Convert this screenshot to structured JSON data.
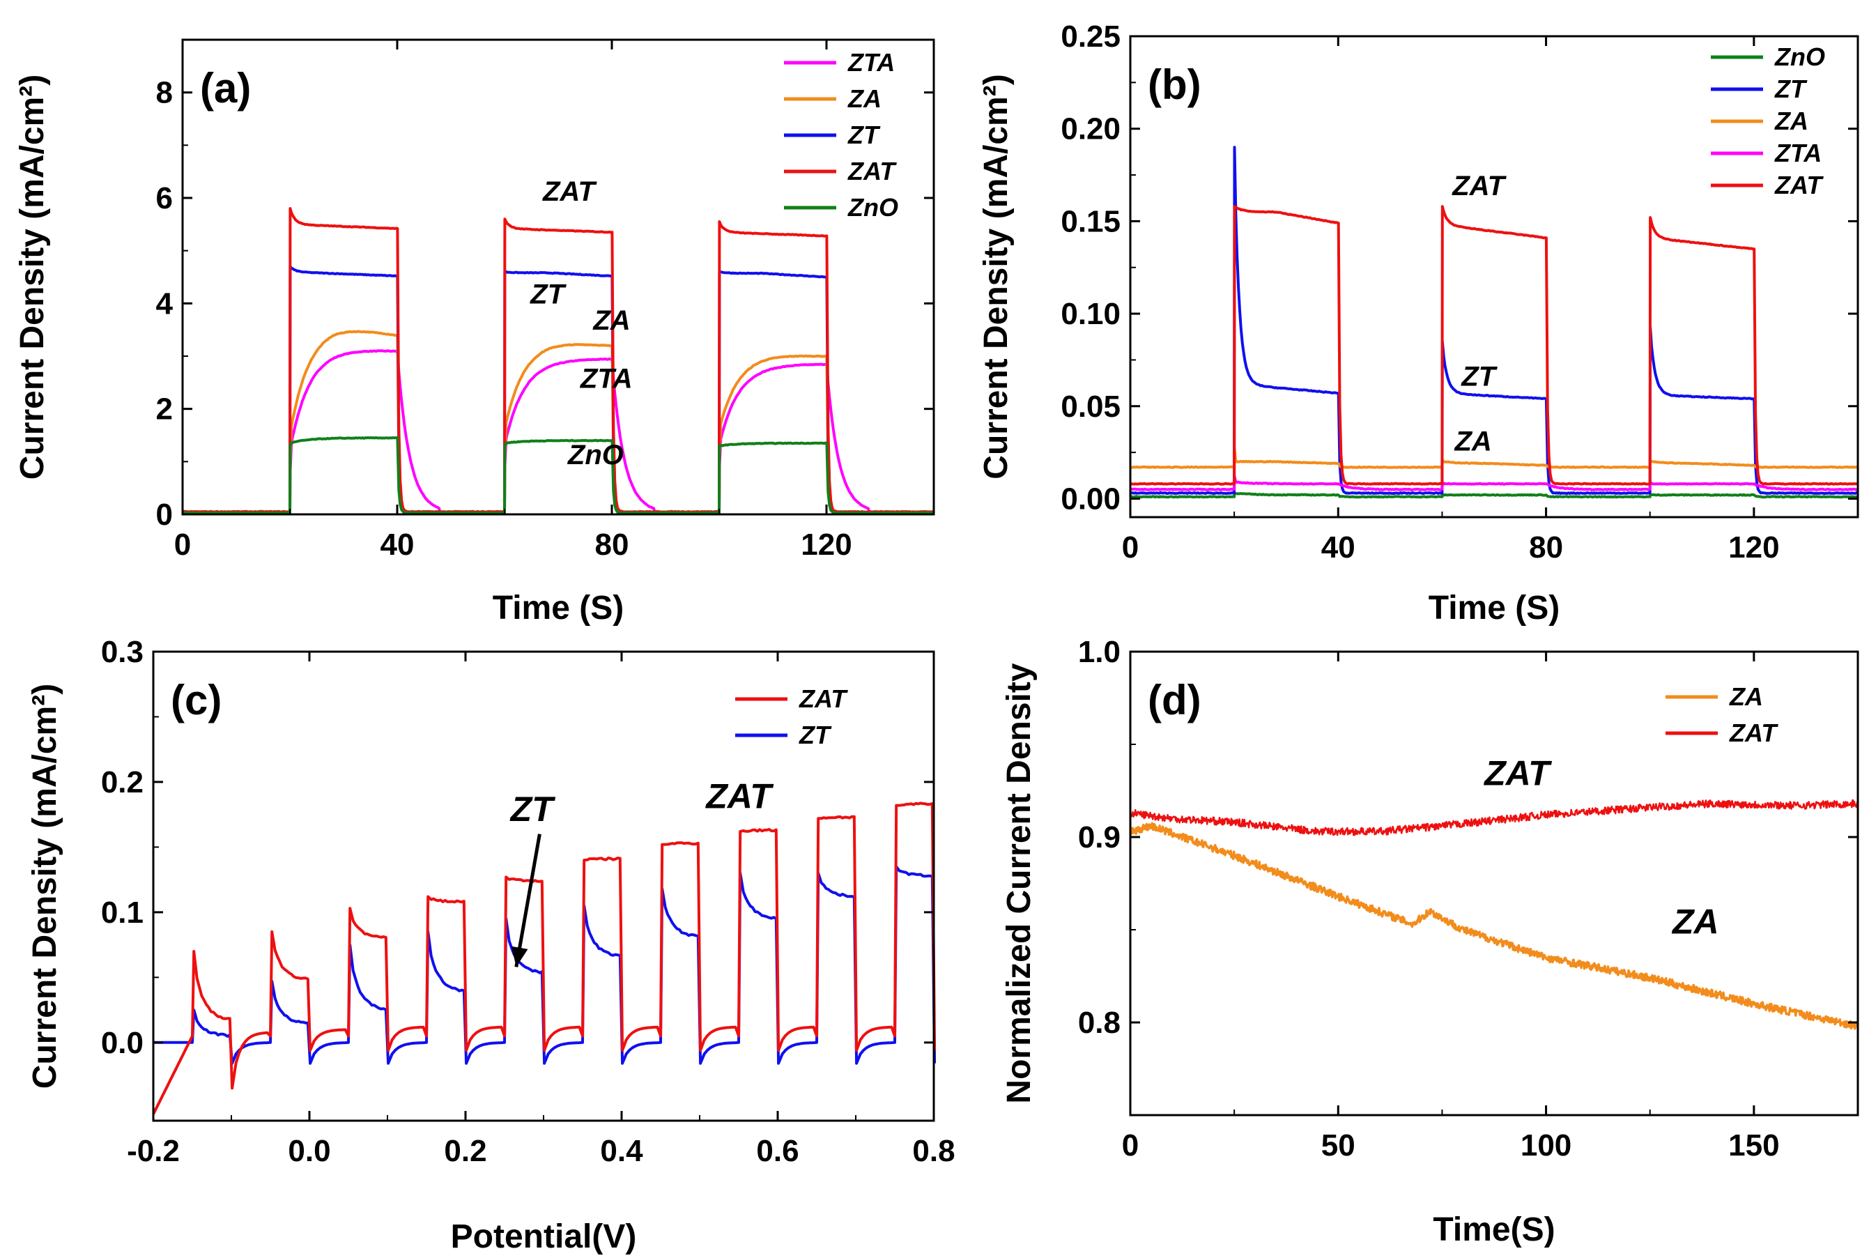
{
  "figure": "photocurrent panels",
  "colors": {
    "ZTA": "#ff00ff",
    "ZA": "#f28c1c",
    "ZT": "#1010ee",
    "ZAT": "#ee1010",
    "ZnO": "#10801a"
  },
  "chart_data": [
    {
      "id": "a",
      "type": "line",
      "panel_label": "(a)",
      "xlabel": "Time (S)",
      "ylabel": "Current Density (mA/cm²)",
      "xlim": [
        0,
        140
      ],
      "ylim": [
        0,
        9
      ],
      "xticks": [
        0,
        40,
        80,
        120
      ],
      "yticks": [
        0,
        2,
        4,
        6,
        8
      ],
      "xtick_labels": [
        "0",
        "40",
        "80",
        "120"
      ],
      "ytick_labels": [
        "0",
        "2",
        "4",
        "6",
        "8"
      ],
      "legend": [
        "ZTA",
        "ZA",
        "ZT",
        "ZAT",
        "ZnO"
      ],
      "legend_position": "top-right",
      "on_off_periods_s": [
        [
          20,
          40
        ],
        [
          60,
          80
        ],
        [
          100,
          120
        ]
      ],
      "series": [
        {
          "name": "ZTA",
          "dark": 0.03,
          "cycles": [
            {
              "spike": 0.8,
              "start": 1.2,
              "plateau": 3.15,
              "end": 3.1
            },
            {
              "spike": 0.9,
              "start": 1.3,
              "plateau": 2.95,
              "end": 2.95
            },
            {
              "spike": 0.9,
              "start": 1.3,
              "plateau": 2.85,
              "end": 2.85
            }
          ]
        },
        {
          "name": "ZA",
          "dark": 0.03,
          "cycles": [
            {
              "spike": 1.0,
              "start": 1.5,
              "plateau": 3.6,
              "end": 3.4
            },
            {
              "spike": 1.1,
              "start": 1.6,
              "plateau": 3.3,
              "end": 3.2
            },
            {
              "spike": 1.1,
              "start": 1.6,
              "plateau": 3.05,
              "end": 3.0
            }
          ]
        },
        {
          "name": "ZT",
          "dark": 0.04,
          "cycles": [
            {
              "spike": 4.7,
              "start": 4.65,
              "plateau": 4.6,
              "end": 4.52
            },
            {
              "spike": 4.6,
              "start": 4.6,
              "plateau": 4.58,
              "end": 4.52
            },
            {
              "spike": 4.6,
              "start": 4.6,
              "plateau": 4.57,
              "end": 4.5
            }
          ]
        },
        {
          "name": "ZAT",
          "dark": 0.05,
          "cycles": [
            {
              "spike": 5.8,
              "start": 5.6,
              "plateau": 5.5,
              "end": 5.42
            },
            {
              "spike": 5.6,
              "start": 5.45,
              "plateau": 5.42,
              "end": 5.35
            },
            {
              "spike": 5.55,
              "start": 5.4,
              "plateau": 5.35,
              "end": 5.28
            }
          ]
        },
        {
          "name": "ZnO",
          "dark": 0.03,
          "cycles": [
            {
              "spike": 1.3,
              "start": 1.35,
              "plateau": 1.45,
              "end": 1.45
            },
            {
              "spike": 1.3,
              "start": 1.35,
              "plateau": 1.4,
              "end": 1.4
            },
            {
              "spike": 1.3,
              "start": 1.3,
              "plateau": 1.35,
              "end": 1.35
            }
          ]
        }
      ],
      "annotations": [
        {
          "text": "ZAT",
          "x": 72,
          "y": 5.95
        },
        {
          "text": "ZT",
          "x": 68,
          "y": 4.0
        },
        {
          "text": "ZA",
          "x": 80,
          "y": 3.5
        },
        {
          "text": "ZTA",
          "x": 79,
          "y": 2.4
        },
        {
          "text": "ZnO",
          "x": 77,
          "y": 0.95
        }
      ]
    },
    {
      "id": "b",
      "type": "line",
      "panel_label": "(b)",
      "xlabel": "Time (S)",
      "ylabel": "Current Density (mA/cm²)",
      "xlim": [
        0,
        140
      ],
      "ylim": [
        -0.01,
        0.25
      ],
      "xticks": [
        0,
        40,
        80,
        120
      ],
      "yticks": [
        0.0,
        0.05,
        0.1,
        0.15,
        0.2,
        0.25
      ],
      "xtick_labels": [
        "0",
        "40",
        "80",
        "120"
      ],
      "ytick_labels": [
        "0.00",
        "0.05",
        "0.10",
        "0.15",
        "0.20",
        "0.25"
      ],
      "legend": [
        "ZnO",
        "ZT",
        "ZA",
        "ZTA",
        "ZAT"
      ],
      "legend_position": "top-right",
      "on_off_periods_s": [
        [
          20,
          40
        ],
        [
          60,
          80
        ],
        [
          100,
          120
        ]
      ],
      "series": [
        {
          "name": "ZnO",
          "dark": 0.001,
          "cycles": [
            {
              "spike": 0.003,
              "start": 0.003,
              "plateau": 0.002,
              "end": 0.002
            },
            {
              "spike": 0.002,
              "start": 0.002,
              "plateau": 0.002,
              "end": 0.002
            },
            {
              "spike": 0.002,
              "start": 0.002,
              "plateau": 0.002,
              "end": 0.002
            }
          ]
        },
        {
          "name": "ZT",
          "dark": 0.003,
          "cycles": [
            {
              "spike": 0.19,
              "start": 0.08,
              "plateau": 0.062,
              "end": 0.057
            },
            {
              "spike": 0.085,
              "start": 0.06,
              "plateau": 0.057,
              "end": 0.054
            },
            {
              "spike": 0.093,
              "start": 0.06,
              "plateau": 0.056,
              "end": 0.054
            }
          ]
        },
        {
          "name": "ZA",
          "dark": 0.017,
          "cycles": [
            {
              "spike": 0.027,
              "start": 0.02,
              "plateau": 0.02,
              "end": 0.019
            },
            {
              "spike": 0.021,
              "start": 0.02,
              "plateau": 0.019,
              "end": 0.018
            },
            {
              "spike": 0.02,
              "start": 0.02,
              "plateau": 0.019,
              "end": 0.018
            }
          ]
        },
        {
          "name": "ZTA",
          "dark": 0.005,
          "cycles": [
            {
              "spike": 0.012,
              "start": 0.009,
              "plateau": 0.008,
              "end": 0.008
            },
            {
              "spike": 0.009,
              "start": 0.008,
              "plateau": 0.008,
              "end": 0.008
            },
            {
              "spike": 0.009,
              "start": 0.008,
              "plateau": 0.008,
              "end": 0.008
            }
          ]
        },
        {
          "name": "ZAT",
          "dark": 0.008,
          "cycles": [
            {
              "spike": 0.158,
              "start": 0.158,
              "plateau": 0.155,
              "end": 0.149
            },
            {
              "spike": 0.158,
              "start": 0.152,
              "plateau": 0.148,
              "end": 0.141
            },
            {
              "spike": 0.152,
              "start": 0.145,
              "plateau": 0.141,
              "end": 0.135
            }
          ]
        }
      ],
      "annotations": [
        {
          "text": "ZAT",
          "x": 67,
          "y": 0.164
        },
        {
          "text": "ZT",
          "x": 67,
          "y": 0.061
        },
        {
          "text": "ZA",
          "x": 66,
          "y": 0.026
        }
      ]
    },
    {
      "id": "c",
      "type": "line",
      "panel_label": "(c)",
      "xlabel": "Potential(V)",
      "ylabel": "Current Density (mA/cm²)",
      "xlim": [
        -0.2,
        0.8
      ],
      "ylim": [
        -0.06,
        0.3
      ],
      "xticks": [
        -0.2,
        0.0,
        0.2,
        0.4,
        0.6,
        0.8
      ],
      "yticks": [
        0.0,
        0.1,
        0.2,
        0.3
      ],
      "xtick_labels": [
        "-0.2",
        "0.0",
        "0.2",
        "0.4",
        "0.6",
        "0.8"
      ],
      "ytick_labels": [
        "0.0",
        "0.1",
        "0.2",
        "0.3"
      ],
      "legend": [
        "ZAT",
        "ZT"
      ],
      "legend_position": "top-right",
      "chopped_light_period_V": 0.1,
      "series": [
        {
          "name": "ZAT",
          "on_potentials": [
            -0.15,
            -0.05,
            0.05,
            0.15,
            0.25,
            0.35,
            0.45,
            0.55,
            0.65,
            0.75
          ],
          "spike": [
            0.07,
            0.085,
            0.103,
            0.112,
            0.127,
            0.14,
            0.152,
            0.162,
            0.172,
            0.182
          ],
          "plateau": [
            0.017,
            0.048,
            0.08,
            0.108,
            0.124,
            0.141,
            0.153,
            0.163,
            0.173,
            0.183
          ]
        },
        {
          "name": "ZT",
          "on_potentials": [
            -0.15,
            -0.05,
            0.05,
            0.15,
            0.25,
            0.35,
            0.45,
            0.55,
            0.65,
            0.75
          ],
          "spike": [
            0.025,
            0.047,
            0.075,
            0.085,
            0.095,
            0.105,
            0.118,
            0.13,
            0.13,
            0.135
          ],
          "plateau": [
            0.005,
            0.014,
            0.025,
            0.039,
            0.053,
            0.066,
            0.081,
            0.095,
            0.112,
            0.128
          ]
        }
      ],
      "annotations": [
        {
          "text": "ZT",
          "x": 0.285,
          "y": 0.17
        },
        {
          "text": "ZAT",
          "x": 0.55,
          "y": 0.18
        }
      ]
    },
    {
      "id": "d",
      "type": "line",
      "panel_label": "(d)",
      "xlabel": "Time(S)",
      "ylabel": "Normalized Current Density",
      "xlim": [
        0,
        175
      ],
      "ylim": [
        0.75,
        1.0
      ],
      "xticks": [
        0,
        50,
        100,
        150
      ],
      "yticks": [
        0.8,
        0.9,
        1.0
      ],
      "xtick_labels": [
        "0",
        "50",
        "100",
        "150"
      ],
      "ytick_labels": [
        "0.8",
        "0.9",
        "1.0"
      ],
      "legend": [
        "ZA",
        "ZAT"
      ],
      "legend_position": "top-right",
      "series": [
        {
          "name": "ZA",
          "x": [
            0,
            5,
            25,
            50,
            68,
            72,
            80,
            100,
            125,
            150,
            175
          ],
          "y": [
            0.903,
            0.906,
            0.89,
            0.868,
            0.853,
            0.86,
            0.85,
            0.835,
            0.824,
            0.81,
            0.798
          ]
        },
        {
          "name": "ZAT",
          "x": [
            0,
            10,
            25,
            45,
            60,
            75,
            100,
            125,
            140,
            160,
            175
          ],
          "y": [
            0.913,
            0.91,
            0.908,
            0.903,
            0.903,
            0.906,
            0.912,
            0.916,
            0.918,
            0.917,
            0.918
          ]
        }
      ],
      "annotations": [
        {
          "text": "ZAT",
          "x": 93,
          "y": 0.928
        },
        {
          "text": "ZA",
          "x": 136,
          "y": 0.848
        }
      ]
    }
  ]
}
